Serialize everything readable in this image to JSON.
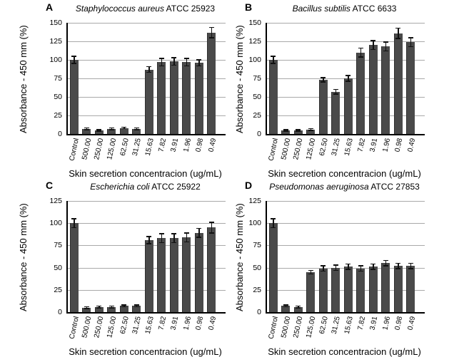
{
  "style": {
    "background": "#ffffff",
    "bar_color": "#4a4a4a",
    "grid_color": "#a9a9a9",
    "axis_color": "#000000",
    "error_bar_color": "#111111"
  },
  "chart_data": [
    {
      "type": "bar",
      "panel": "A",
      "title_italic": "Staphylococcus aureus",
      "title_regular": "ATCC 25923",
      "ylabel": "Absorbance - 450 mm (%)",
      "xlabel": "Skin secretion concentracion (ug/mL)",
      "ylim": [
        0,
        150
      ],
      "yticks": [
        0,
        25,
        50,
        75,
        100,
        125,
        150
      ],
      "grid": true,
      "legend": "none",
      "error_bars": true,
      "categories": [
        "Control",
        "500.00",
        "250.00",
        "125.00",
        "62.50",
        "31.25",
        "15.63",
        "7.82",
        "3.91",
        "1.96",
        "0.98",
        "0.49"
      ],
      "values": [
        100,
        7,
        5,
        7,
        8,
        7,
        87,
        97,
        98,
        97,
        96,
        137
      ],
      "errors": [
        5,
        1,
        1,
        1,
        1,
        1,
        4,
        5,
        5,
        5,
        4,
        7
      ]
    },
    {
      "type": "bar",
      "panel": "B",
      "title_italic": "Bacillus subtilis",
      "title_regular": "ATCC 6633",
      "ylabel": "Absorbance - 450 mm (%)",
      "xlabel": "Skin secretion concentracion (ug/mL)",
      "ylim": [
        0,
        150
      ],
      "yticks": [
        0,
        25,
        50,
        75,
        100,
        125,
        150
      ],
      "grid": true,
      "legend": "none",
      "error_bars": true,
      "categories": [
        "Control",
        "500.00",
        "250.00",
        "125.00",
        "62.50",
        "31.25",
        "15.63",
        "7.82",
        "3.91",
        "1.96",
        "0.98",
        "0.49"
      ],
      "values": [
        100,
        5,
        5,
        6,
        73,
        57,
        75,
        110,
        120,
        118,
        136,
        124
      ],
      "errors": [
        5,
        1,
        1,
        1,
        3,
        3,
        4,
        6,
        6,
        6,
        7,
        6
      ]
    },
    {
      "type": "bar",
      "panel": "C",
      "title_italic": "Escherichia coli",
      "title_regular": "ATCC 25922",
      "ylabel": "Absorbance - 450 mm (%)",
      "xlabel": "Skin secretion concentracion (ug/mL)",
      "ylim": [
        0,
        125
      ],
      "yticks": [
        0,
        25,
        50,
        75,
        100,
        125
      ],
      "grid": true,
      "legend": "none",
      "error_bars": true,
      "categories": [
        "Control",
        "500.00",
        "250.00",
        "125.00",
        "62.50",
        "31.25",
        "15.63",
        "7.82",
        "3.91",
        "1.96",
        "0.98",
        "0.49"
      ],
      "values": [
        100,
        5,
        6,
        6,
        7,
        7,
        81,
        83,
        83,
        84,
        89,
        95
      ],
      "errors": [
        5,
        1,
        1,
        1,
        1,
        1,
        4,
        5,
        5,
        5,
        5,
        6
      ]
    },
    {
      "type": "bar",
      "panel": "D",
      "title_italic": "Pseudomonas aeruginosa",
      "title_regular": "ATCC 27853",
      "ylabel": "Absorbance - 450 mm (%)",
      "xlabel": "Skin secretion concentracion (ug/mL)",
      "ylim": [
        0,
        125
      ],
      "yticks": [
        0,
        25,
        50,
        75,
        100,
        125
      ],
      "grid": true,
      "legend": "none",
      "error_bars": true,
      "categories": [
        "Control",
        "500.00",
        "250.00",
        "125.00",
        "62.50",
        "31.25",
        "15.63",
        "7.82",
        "3.91",
        "1.96",
        "0.98",
        "0.49"
      ],
      "values": [
        100,
        7,
        6,
        45,
        49,
        50,
        51,
        49,
        51,
        55,
        52,
        52
      ],
      "errors": [
        5,
        1,
        1,
        2,
        3,
        3,
        3,
        3,
        3,
        3,
        3,
        3
      ]
    }
  ]
}
